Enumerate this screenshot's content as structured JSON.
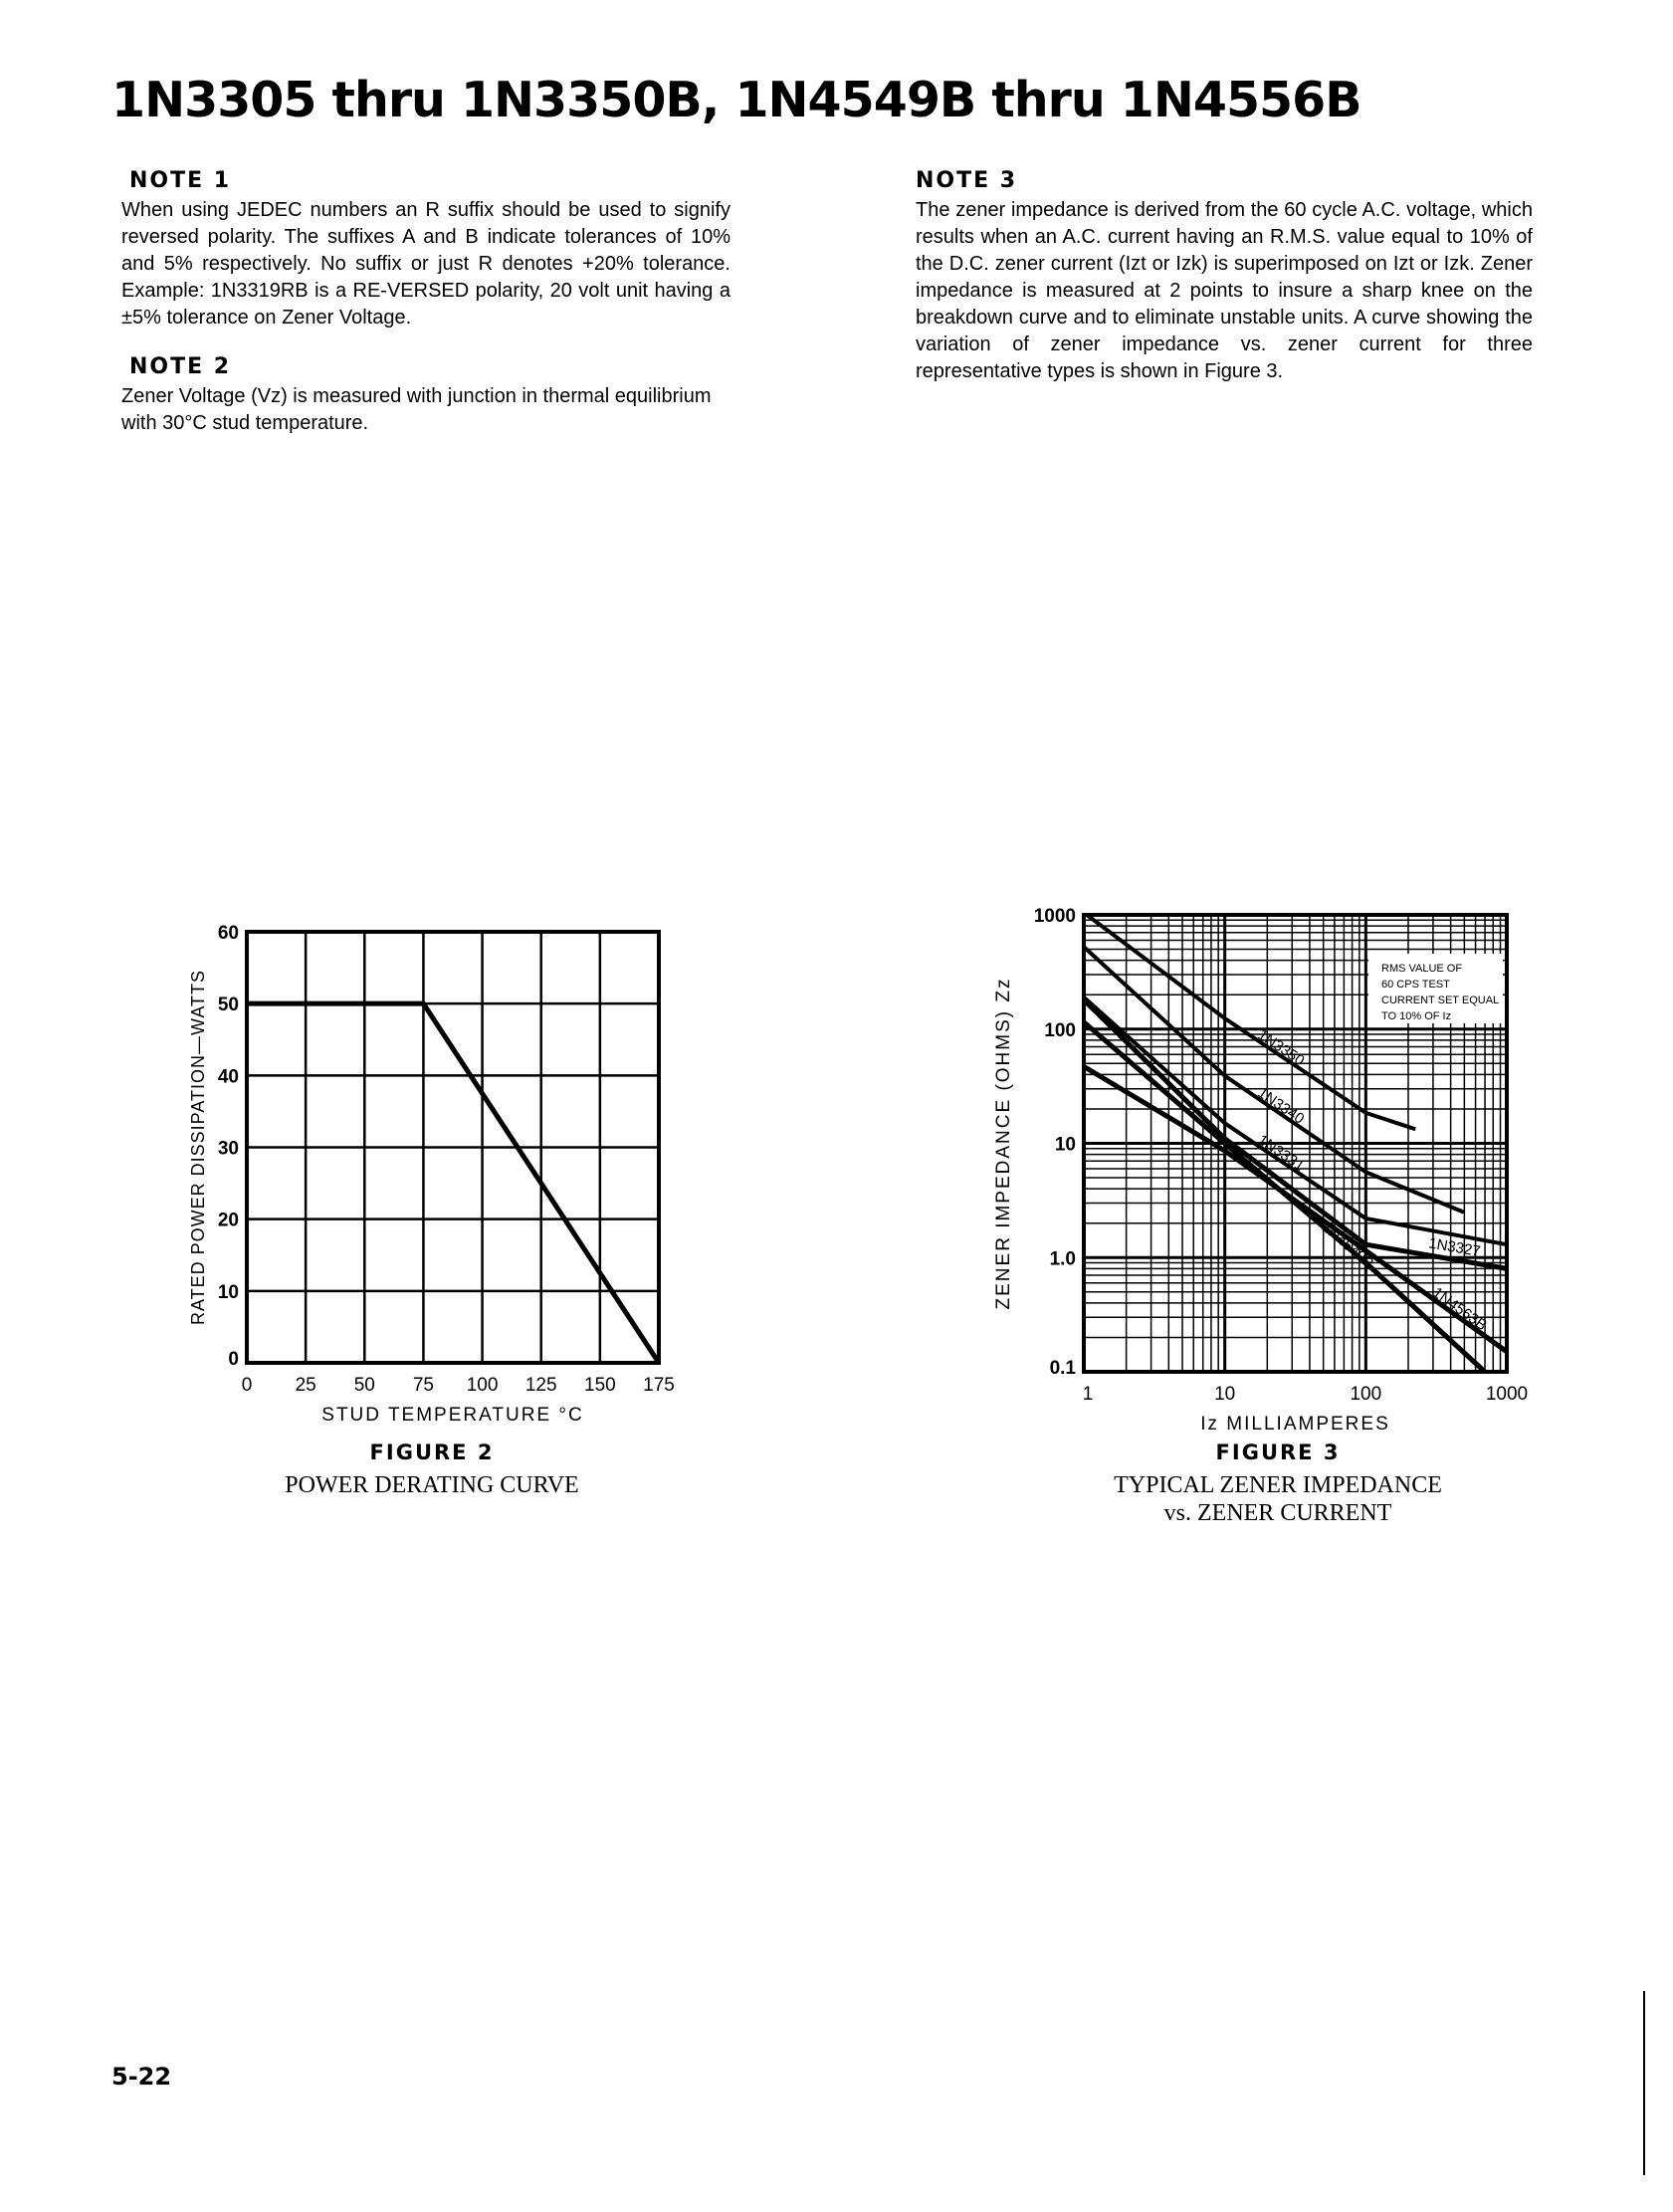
{
  "header": {
    "title": "1N3305 thru 1N3350B, 1N4549B thru 1N4556B"
  },
  "notes": [
    {
      "heading": "NOTE 1",
      "text": "When using JEDEC numbers an R suffix should be used to signify reversed polarity. The suffixes A and B indicate tolerances of 10% and 5% respectively. No suffix or just R denotes +20% tolerance.  Example: 1N3319RB is a RE-VERSED polarity, 20 volt unit having a ±5% tolerance on Zener Voltage."
    },
    {
      "heading": "NOTE 2",
      "text": "Zener Voltage (Vz) is measured with junction in thermal equilibrium with 30°C stud temperature."
    },
    {
      "heading": "NOTE 3",
      "text": "The zener impedance is derived from the 60 cycle A.C. voltage, which results when an A.C. current having an R.M.S. value equal to 10% of the D.C. zener current (Izt or Izk) is superimposed on Izt or Izk.  Zener impedance is measured at 2 points to insure a sharp knee on the breakdown curve and to eliminate unstable units.  A curve showing the variation of zener impedance vs. zener current for three representative types is shown in Figure 3."
    }
  ],
  "figures": [
    {
      "label": "FIGURE 2",
      "caption": [
        "POWER DERATING CURVE"
      ]
    },
    {
      "label": "FIGURE 3",
      "caption": [
        "TYPICAL ZENER IMPEDANCE",
        "vs. ZENER CURRENT"
      ]
    }
  ],
  "footer": {
    "page_number": "5-22"
  },
  "chart_data": [
    {
      "type": "line",
      "xlabel": "STUD TEMPERATURE °C",
      "ylabel": "RATED POWER DISSIPATION—WATTS",
      "xlim": [
        0,
        175
      ],
      "ylim": [
        0,
        60
      ],
      "xticks": [
        0,
        25,
        50,
        75,
        100,
        125,
        150,
        175
      ],
      "yticks": [
        0,
        10,
        20,
        30,
        40,
        50,
        60
      ],
      "grid": true,
      "series": [
        {
          "x": [
            0,
            75,
            175
          ],
          "y": [
            50,
            50,
            0
          ]
        }
      ]
    },
    {
      "type": "line",
      "xlabel": "Iz MILLIAMPERES",
      "ylabel": "ZENER IMPEDANCE (OHMS) Zz",
      "xscale": "log",
      "yscale": "log",
      "xlim": [
        1,
        1000
      ],
      "ylim": [
        0.1,
        1000
      ],
      "xticks": [
        "1",
        "10",
        "100",
        "1000"
      ],
      "yticks": [
        "0.1",
        "1.0",
        "10",
        "100",
        "1000"
      ],
      "grid": true,
      "annotation": [
        "RMS VALUE OF",
        "60 CPS TEST",
        "CURRENT SET EQUAL",
        "TO 10% OF Iz"
      ],
      "series": [
        {
          "name": "1N3350",
          "x": [
            1.05,
            10,
            100,
            225
          ],
          "y": [
            1000,
            124,
            18.5,
            13.3
          ]
        },
        {
          "name": "1N3340",
          "x": [
            1,
            10,
            100,
            495
          ],
          "y": [
            525,
            39,
            5.6,
            2.5
          ]
        },
        {
          "name": "1N3331",
          "x": [
            1,
            10,
            100,
            1000
          ],
          "y": [
            190,
            15,
            2.2,
            1.3
          ]
        },
        {
          "name": "1N3327",
          "x": [
            1,
            10,
            100,
            1000
          ],
          "y": [
            180,
            11,
            1.3,
            0.8
          ]
        },
        {
          "name": "1N4563B",
          "x": [
            1,
            10,
            100,
            1000
          ],
          "y": [
            47,
            8.6,
            1.15,
            0.15
          ]
        },
        {
          "name": "1N4549B",
          "x": [
            1,
            10,
            100,
            700
          ],
          "y": [
            115,
            10,
            0.9,
            0.1
          ]
        }
      ]
    }
  ]
}
